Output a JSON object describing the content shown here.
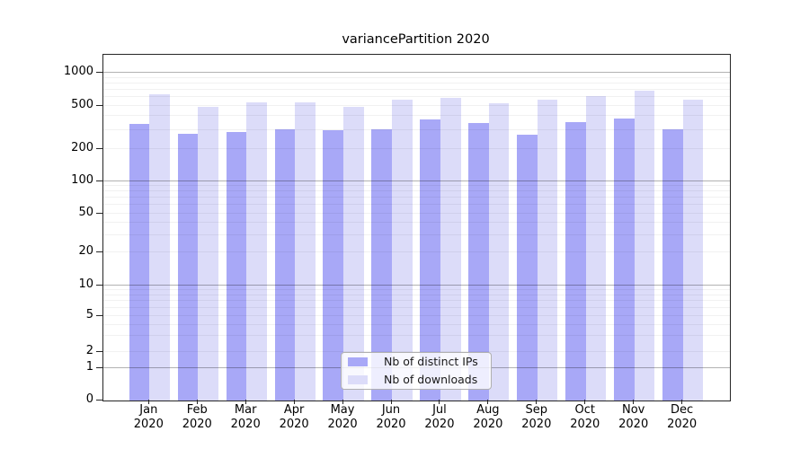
{
  "chart_data": {
    "type": "bar",
    "title": "variancePartition 2020",
    "categories": [
      "Jan",
      "Feb",
      "Mar",
      "Apr",
      "May",
      "Jun",
      "Jul",
      "Aug",
      "Sep",
      "Oct",
      "Nov",
      "Dec"
    ],
    "x_tick_year": "2020",
    "series": [
      {
        "name": "Nb of distinct IPs",
        "color": "#a8a8f7",
        "values": [
          330,
          270,
          280,
          295,
          290,
          300,
          365,
          340,
          265,
          345,
          375,
          300
        ]
      },
      {
        "name": "Nb of downloads",
        "color": "#dcdcf9",
        "values": [
          620,
          480,
          525,
          520,
          475,
          560,
          575,
          515,
          560,
          600,
          670,
          560
        ]
      }
    ],
    "xlabel": "",
    "ylabel": "",
    "yscale": "symlog",
    "yticks": [
      "1000",
      "500",
      "200",
      "100",
      "50",
      "20",
      "10",
      "5",
      "2",
      "1",
      "0"
    ],
    "ylim": [
      0,
      1500
    ],
    "grid": true,
    "legend_position": "lower center"
  },
  "legend": {
    "items": [
      {
        "label": "Nb of distinct IPs"
      },
      {
        "label": "Nb of downloads"
      }
    ]
  }
}
